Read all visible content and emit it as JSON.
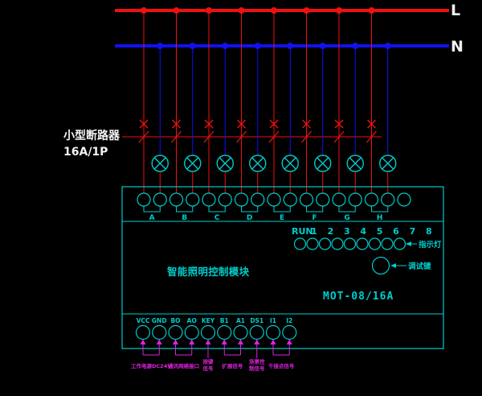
{
  "bus": {
    "live_label": "L",
    "neutral_label": "N"
  },
  "annotation": {
    "breaker_line1": "小型断路器",
    "breaker_line2": "16A/1P"
  },
  "module": {
    "title": "智能照明控制模块",
    "model": "MOT-08/16A",
    "run_label": "RUN",
    "channel_numbers": [
      "1",
      "2",
      "3",
      "4",
      "5",
      "6",
      "7",
      "8"
    ],
    "output_terminals": [
      "A",
      "B",
      "C",
      "D",
      "E",
      "F",
      "G",
      "H"
    ],
    "indicator_label": "指示灯",
    "test_button_label": "调试键",
    "input_terminals": [
      "VCC",
      "GND",
      "BO",
      "AO",
      "KEY",
      "B1",
      "A1",
      "DS1",
      "I1",
      "I2"
    ]
  },
  "input_notes": [
    {
      "lines": [
        "工作电源DC24V"
      ],
      "terminals": [
        0,
        1
      ]
    },
    {
      "lines": [
        "通讯网络接口"
      ],
      "terminals": [
        2,
        3
      ]
    },
    {
      "lines": [
        "按键",
        "信号"
      ],
      "terminals": [
        4
      ]
    },
    {
      "lines": [
        "扩展信号"
      ],
      "terminals": [
        5,
        6
      ]
    },
    {
      "lines": [
        "场景控",
        "制信号"
      ],
      "terminals": [
        7
      ]
    },
    {
      "lines": [
        "干接点信号"
      ],
      "terminals": [
        8,
        9
      ]
    }
  ],
  "counts": {
    "channels": 8,
    "indicator_leds": 9,
    "top_terminals": 17,
    "bottom_terminals": 10
  },
  "colors": {
    "live": "#ee1111",
    "neutral": "#1111ee",
    "module": "#00cccc",
    "note": "#dd22dd",
    "text": "#f2f2f2",
    "background": "#000000"
  }
}
